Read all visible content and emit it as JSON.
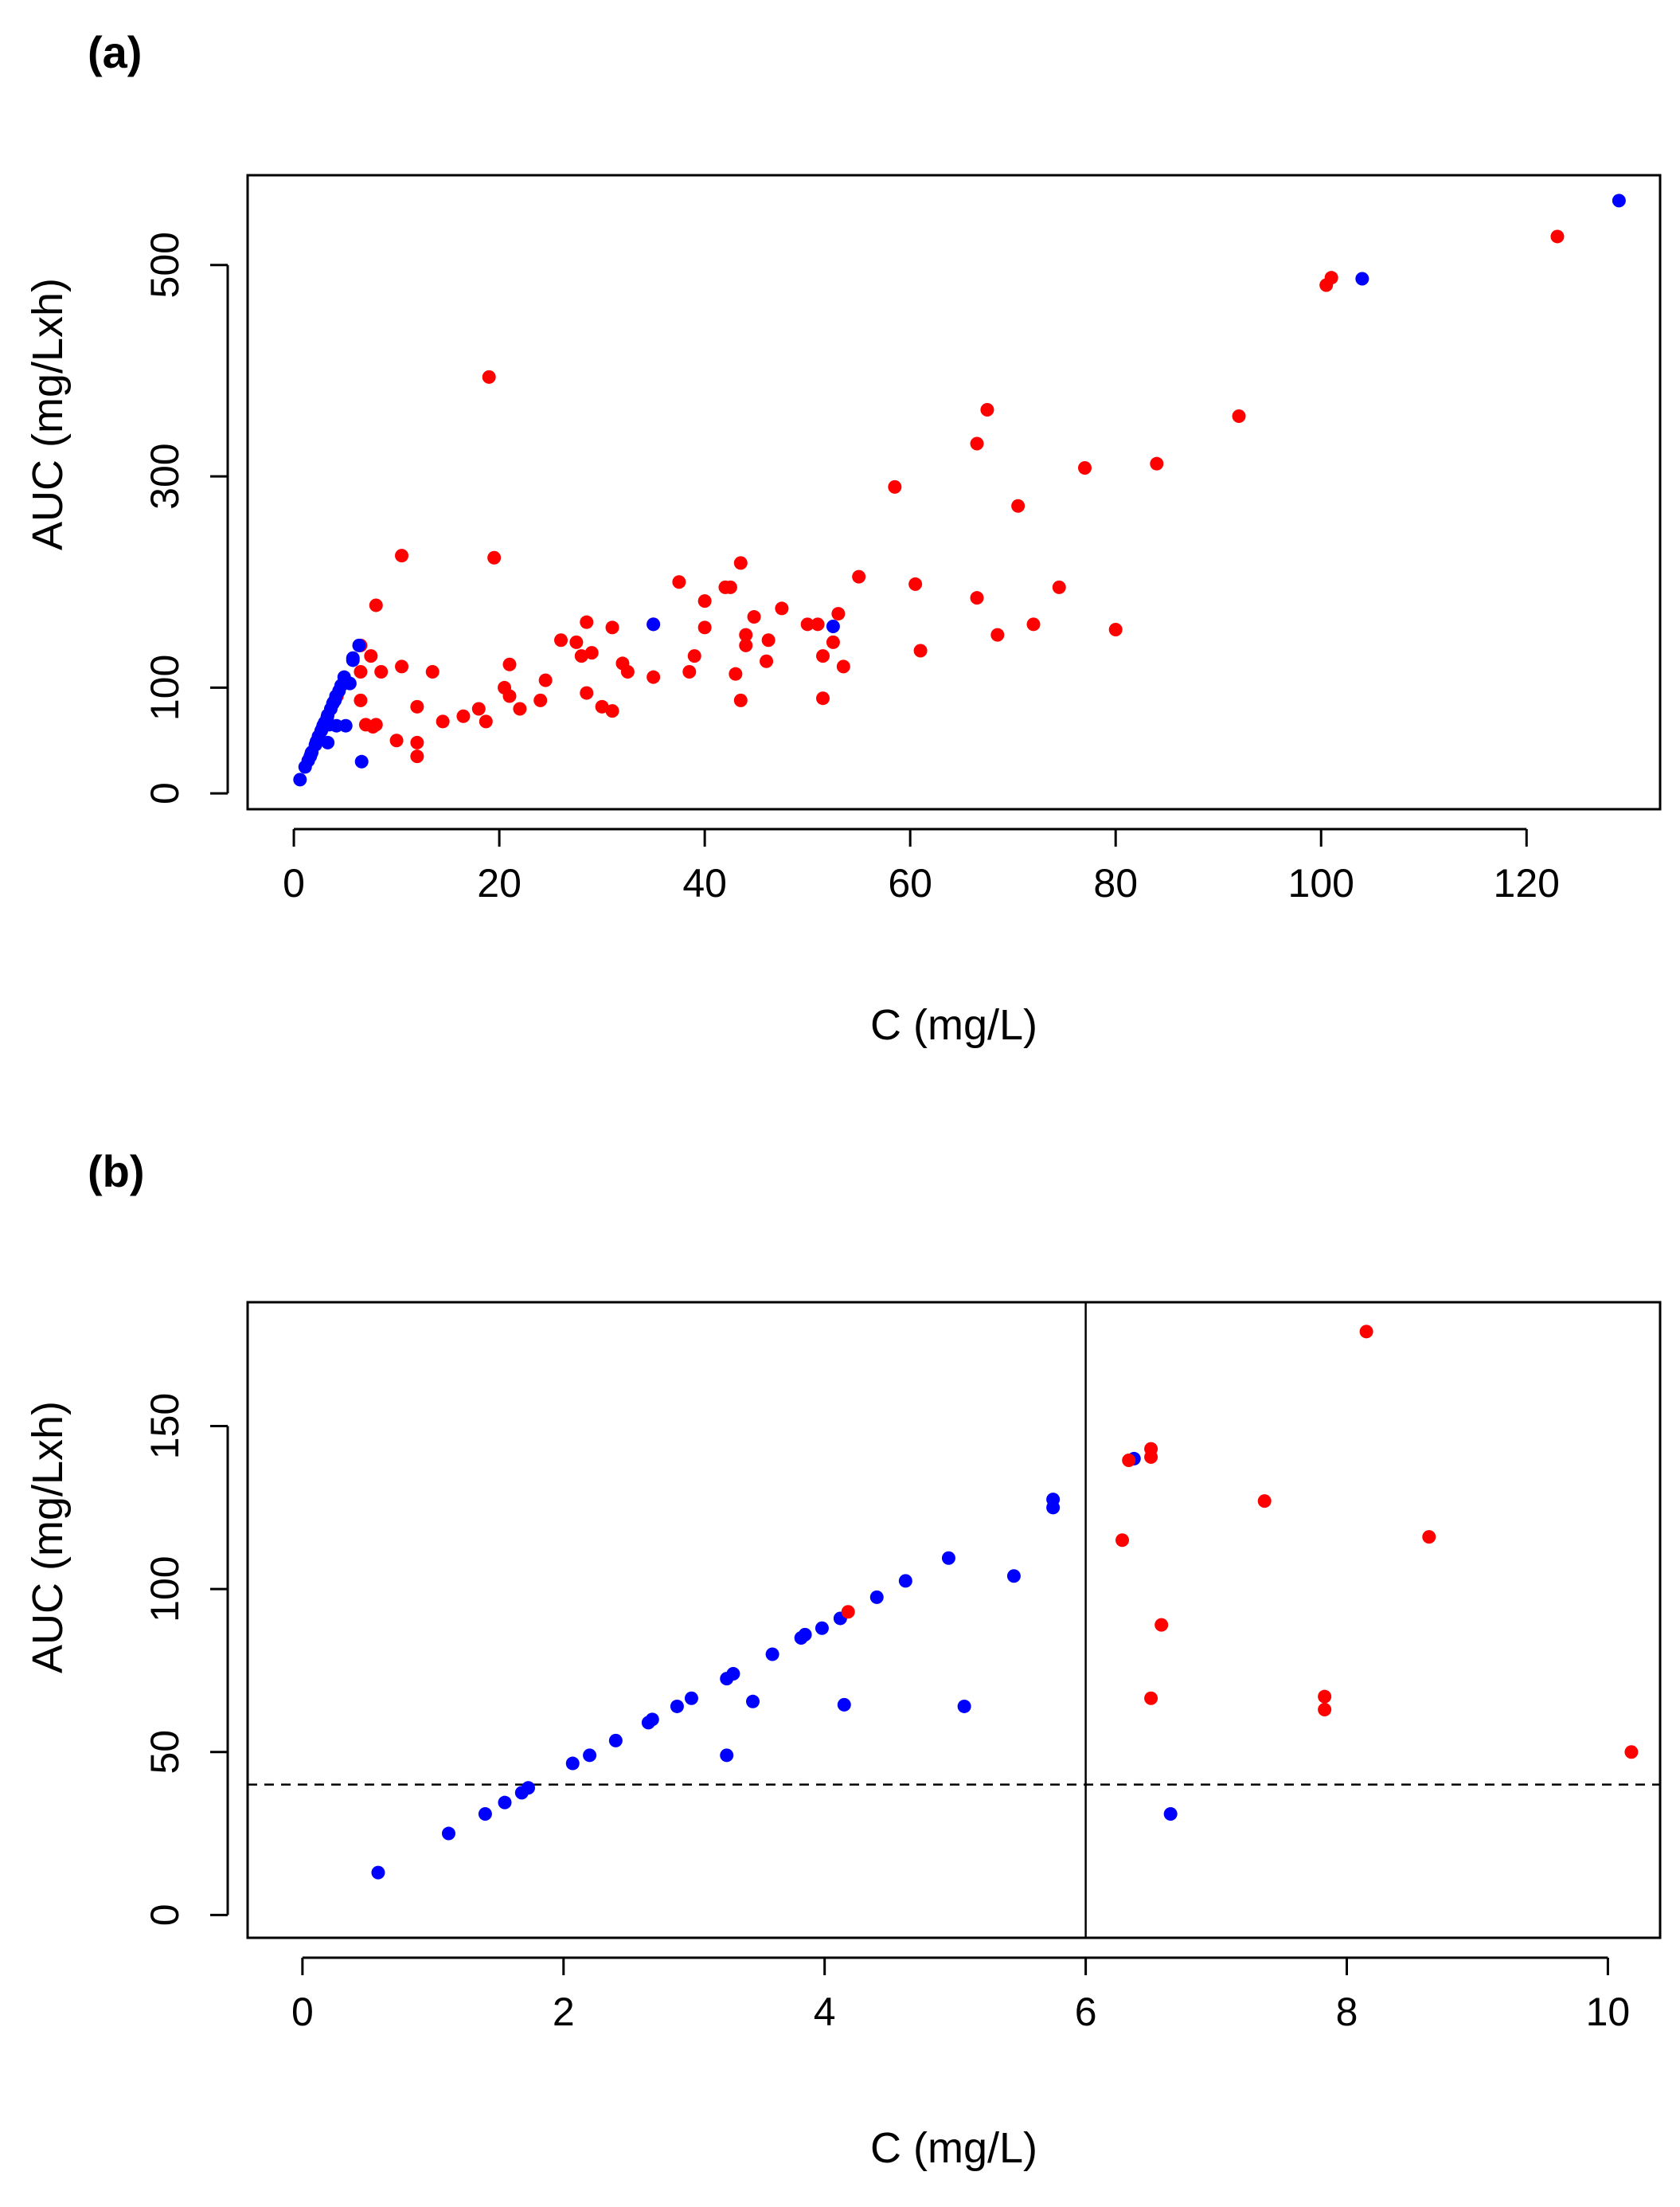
{
  "chart_data": [
    {
      "panel_label": "(a)",
      "type": "scatter",
      "xlabel": "C (mg/L)",
      "ylabel": "AUC (mg/Lxh)",
      "xlim": [
        -4.5,
        133
      ],
      "ylim": [
        -15,
        585
      ],
      "xticks": [
        0,
        20,
        40,
        60,
        80,
        100,
        120
      ],
      "yticks": [
        0,
        100,
        300,
        500
      ],
      "reference_lines": [],
      "series": [
        {
          "name": "red",
          "color": "#ff0000",
          "points": [
            [
              4.2,
              92
            ],
            [
              6.5,
              140
            ],
            [
              7.5,
              130
            ],
            [
              8.0,
              178
            ],
            [
              6.5,
              115
            ],
            [
              8.5,
              115
            ],
            [
              6.5,
              88
            ],
            [
              7.0,
              65
            ],
            [
              8.0,
              65
            ],
            [
              7.7,
              63
            ],
            [
              10.5,
              225
            ],
            [
              10.5,
              120
            ],
            [
              10.0,
              50
            ],
            [
              12.0,
              35
            ],
            [
              12.0,
              48
            ],
            [
              12.0,
              82
            ],
            [
              13.5,
              115
            ],
            [
              14.5,
              68
            ],
            [
              16.5,
              73
            ],
            [
              18.0,
              80
            ],
            [
              18.7,
              68
            ],
            [
              19.0,
              394
            ],
            [
              19.5,
              223
            ],
            [
              20.5,
              100
            ],
            [
              21.0,
              92
            ],
            [
              21.0,
              122
            ],
            [
              22.0,
              80
            ],
            [
              24.0,
              88
            ],
            [
              24.5,
              107
            ],
            [
              26.0,
              145
            ],
            [
              27.5,
              143
            ],
            [
              28.0,
              130
            ],
            [
              28.5,
              162
            ],
            [
              28.5,
              95
            ],
            [
              29.0,
              133
            ],
            [
              30.0,
              82
            ],
            [
              31.0,
              78
            ],
            [
              31.0,
              157
            ],
            [
              32.0,
              123
            ],
            [
              32.5,
              115
            ],
            [
              35.0,
              160
            ],
            [
              35.0,
              110
            ],
            [
              37.5,
              200
            ],
            [
              38.5,
              115
            ],
            [
              39.0,
              130
            ],
            [
              40.0,
              182
            ],
            [
              40.0,
              157
            ],
            [
              42.0,
              195
            ],
            [
              42.5,
              195
            ],
            [
              43.0,
              113
            ],
            [
              43.5,
              218
            ],
            [
              43.5,
              88
            ],
            [
              44.0,
              140
            ],
            [
              44.0,
              150
            ],
            [
              44.8,
              167
            ],
            [
              46.0,
              125
            ],
            [
              46.2,
              145
            ],
            [
              47.5,
              175
            ],
            [
              50.0,
              160
            ],
            [
              51.0,
              160
            ],
            [
              51.5,
              90
            ],
            [
              51.5,
              130
            ],
            [
              52.5,
              143
            ],
            [
              53.0,
              170
            ],
            [
              53.5,
              120
            ],
            [
              55.0,
              205
            ],
            [
              58.5,
              290
            ],
            [
              60.5,
              198
            ],
            [
              61.0,
              135
            ],
            [
              66.5,
              185
            ],
            [
              66.5,
              331
            ],
            [
              67.5,
              363
            ],
            [
              68.5,
              150
            ],
            [
              70.5,
              272
            ],
            [
              72.0,
              160
            ],
            [
              74.5,
              195
            ],
            [
              77.0,
              308
            ],
            [
              80.0,
              155
            ],
            [
              84.0,
              312
            ],
            [
              92.0,
              357
            ],
            [
              100.5,
              481
            ],
            [
              101.0,
              488
            ],
            [
              123.0,
              527
            ]
          ]
        },
        {
          "name": "blue",
          "color": "#0000ff",
          "points": [
            [
              0.6,
              13
            ],
            [
              1.1,
              25
            ],
            [
              1.4,
              31
            ],
            [
              1.6,
              35
            ],
            [
              1.7,
              38
            ],
            [
              1.75,
              39
            ],
            [
              2.1,
              46
            ],
            [
              2.2,
              49
            ],
            [
              2.4,
              54
            ],
            [
              2.65,
              59
            ],
            [
              2.7,
              60
            ],
            [
              2.85,
              64
            ],
            [
              3.0,
              67
            ],
            [
              3.25,
              72
            ],
            [
              3.3,
              74
            ],
            [
              3.45,
              65
            ],
            [
              3.6,
              80
            ],
            [
              3.8,
              85
            ],
            [
              3.85,
              86
            ],
            [
              4.0,
              88
            ],
            [
              4.1,
              92
            ],
            [
              4.15,
              64
            ],
            [
              4.4,
              97
            ],
            [
              4.6,
              102
            ],
            [
              4.9,
              110
            ],
            [
              5.05,
              64
            ],
            [
              5.45,
              104
            ],
            [
              5.75,
              126
            ],
            [
              5.75,
              128
            ],
            [
              6.35,
              140
            ],
            [
              3.3,
              48
            ],
            [
              6.6,
              30
            ],
            [
              35.0,
              160
            ],
            [
              52.5,
              158
            ],
            [
              104.0,
              487
            ],
            [
              129.0,
              561
            ]
          ]
        }
      ]
    },
    {
      "panel_label": "(b)",
      "type": "scatter",
      "xlabel": "C (mg/L)",
      "ylabel": "AUC (mg/Lxh)",
      "xlim": [
        -0.42,
        10.4
      ],
      "ylim": [
        -7,
        188
      ],
      "xticks": [
        0,
        2,
        4,
        6,
        8,
        10
      ],
      "yticks": [
        0,
        50,
        100,
        150
      ],
      "reference_lines": [
        {
          "orientation": "vertical",
          "value": 6,
          "style": "solid"
        },
        {
          "orientation": "horizontal",
          "value": 40,
          "style": "dashed"
        }
      ],
      "series": [
        {
          "name": "blue",
          "color": "#0000ff",
          "points": [
            [
              0.58,
              13
            ],
            [
              1.12,
              25
            ],
            [
              1.4,
              31
            ],
            [
              1.55,
              34.5
            ],
            [
              1.68,
              37.5
            ],
            [
              1.73,
              39
            ],
            [
              2.07,
              46.5
            ],
            [
              2.2,
              49
            ],
            [
              2.4,
              53.5
            ],
            [
              2.65,
              59
            ],
            [
              2.68,
              60
            ],
            [
              2.87,
              64
            ],
            [
              2.98,
              66.5
            ],
            [
              3.25,
              72.5
            ],
            [
              3.3,
              74
            ],
            [
              3.25,
              49
            ],
            [
              3.45,
              65.5
            ],
            [
              3.6,
              80
            ],
            [
              3.82,
              85
            ],
            [
              3.85,
              86
            ],
            [
              3.98,
              88
            ],
            [
              4.12,
              91
            ],
            [
              4.15,
              64.5
            ],
            [
              4.4,
              97.5
            ],
            [
              4.62,
              102.5
            ],
            [
              4.95,
              109.5
            ],
            [
              5.07,
              64
            ],
            [
              5.45,
              104
            ],
            [
              5.75,
              125
            ],
            [
              5.75,
              127.5
            ],
            [
              6.37,
              140
            ],
            [
              6.65,
              31
            ]
          ]
        },
        {
          "name": "red",
          "color": "#ff0000",
          "points": [
            [
              4.18,
              93
            ],
            [
              6.28,
              115
            ],
            [
              6.33,
              139.5
            ],
            [
              6.5,
              143
            ],
            [
              6.5,
              140.5
            ],
            [
              6.5,
              66.5
            ],
            [
              6.58,
              89
            ],
            [
              7.37,
              127
            ],
            [
              7.83,
              67
            ],
            [
              7.83,
              63
            ],
            [
              8.15,
              179
            ],
            [
              8.63,
              116
            ],
            [
              10.18,
              50
            ]
          ]
        }
      ]
    }
  ]
}
